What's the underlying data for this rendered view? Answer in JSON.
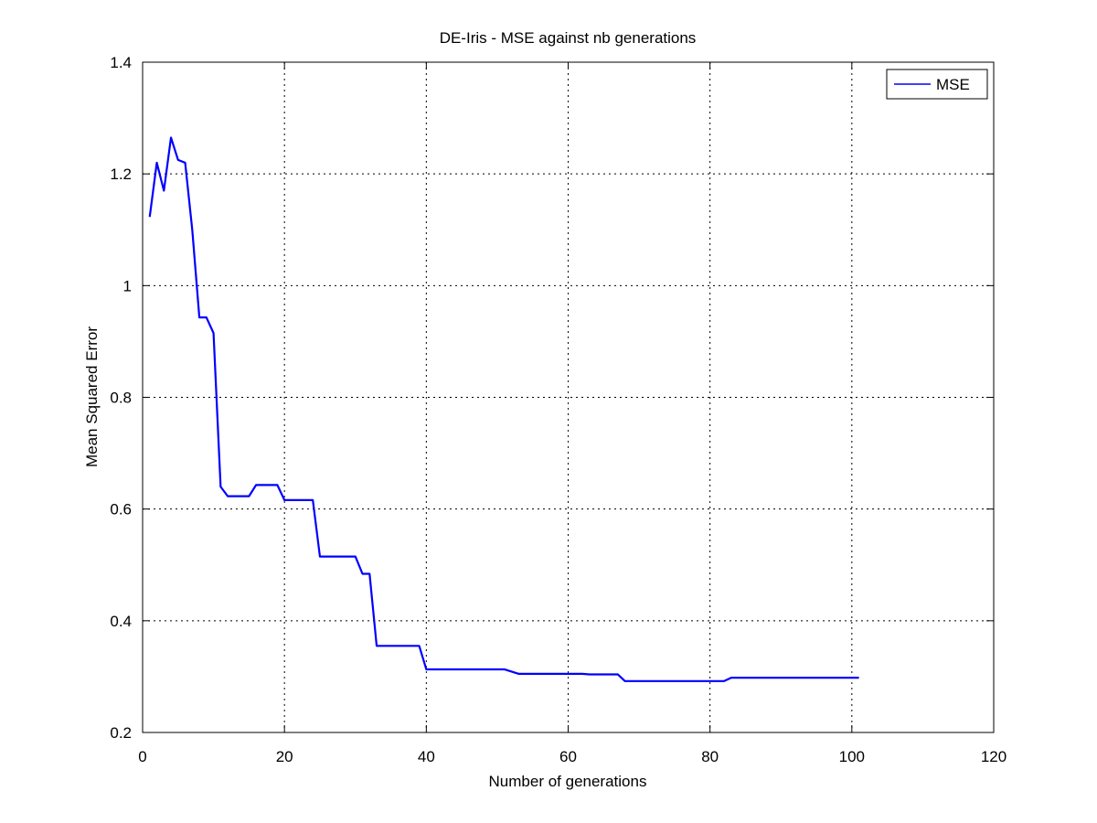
{
  "chart_data": {
    "type": "line",
    "title": "DE-Iris - MSE against nb generations",
    "xlabel": "Number of generations",
    "ylabel": "Mean Squared Error",
    "xlim": [
      0,
      120
    ],
    "ylim": [
      0.2,
      1.4
    ],
    "xticks": [
      0,
      20,
      40,
      60,
      80,
      100,
      120
    ],
    "yticks": [
      0.2,
      0.4,
      0.6,
      0.8,
      1,
      1.2,
      1.4
    ],
    "xtick_labels": [
      "0",
      "20",
      "40",
      "60",
      "80",
      "100",
      "120"
    ],
    "ytick_labels": [
      "0.2",
      "0.4",
      "0.6",
      "0.8",
      "1",
      "1.2",
      "1.4"
    ],
    "grid": true,
    "legend_position": "top-right",
    "series": [
      {
        "name": "MSE",
        "color": "#0000ff",
        "x": [
          1,
          2,
          3,
          4,
          5,
          6,
          7,
          8,
          9,
          10,
          11,
          12,
          15,
          16,
          19,
          20,
          24,
          25,
          30,
          31,
          32,
          33,
          39,
          40,
          51,
          53,
          62,
          63,
          67,
          68,
          82,
          83,
          101
        ],
        "y": [
          1.123,
          1.22,
          1.17,
          1.265,
          1.225,
          1.22,
          1.1,
          0.943,
          0.943,
          0.915,
          0.64,
          0.623,
          0.623,
          0.643,
          0.643,
          0.616,
          0.616,
          0.515,
          0.515,
          0.484,
          0.484,
          0.355,
          0.355,
          0.313,
          0.313,
          0.305,
          0.305,
          0.304,
          0.304,
          0.292,
          0.292,
          0.298,
          0.298
        ]
      }
    ]
  }
}
